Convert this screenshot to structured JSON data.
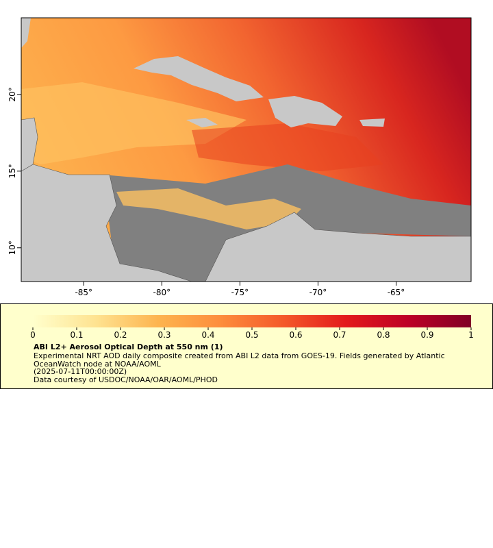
{
  "map": {
    "xlim": [
      -89,
      -60.2
    ],
    "ylim": [
      7.8,
      25
    ],
    "xticks": [
      {
        "value": -85,
        "label": "-85°"
      },
      {
        "value": -80,
        "label": "-80°"
      },
      {
        "value": -75,
        "label": "-75°"
      },
      {
        "value": -70,
        "label": "-70°"
      },
      {
        "value": -65,
        "label": "-65°"
      }
    ],
    "yticks": [
      {
        "value": 10,
        "label": "10°"
      },
      {
        "value": 15,
        "label": "15°"
      },
      {
        "value": 20,
        "label": "20°"
      }
    ]
  },
  "colorbar": {
    "range": [
      0,
      1
    ],
    "ticks": [
      0,
      0.1,
      0.2,
      0.3,
      0.4,
      0.5,
      0.6,
      0.7,
      0.8,
      0.9,
      1
    ],
    "colors": [
      "#ffffcc",
      "#fee391",
      "#fdb44f",
      "#fd8d3c",
      "#f4592a",
      "#e31a1c",
      "#bd0026",
      "#800026"
    ]
  },
  "legend": {
    "title": "ABI L2+ Aerosol Optical Depth at 550 nm (1)",
    "description": "Experimental NRT AOD daily composite created from ABI L2 data from GOES-19. Fields generated by Atlantic OceanWatch node at NOAA/AOML",
    "time": "(2025-07-11T00:00:00Z)",
    "credit": "Data courtesy of USDOC/NOAA/OAR/AOML/PHOD"
  }
}
